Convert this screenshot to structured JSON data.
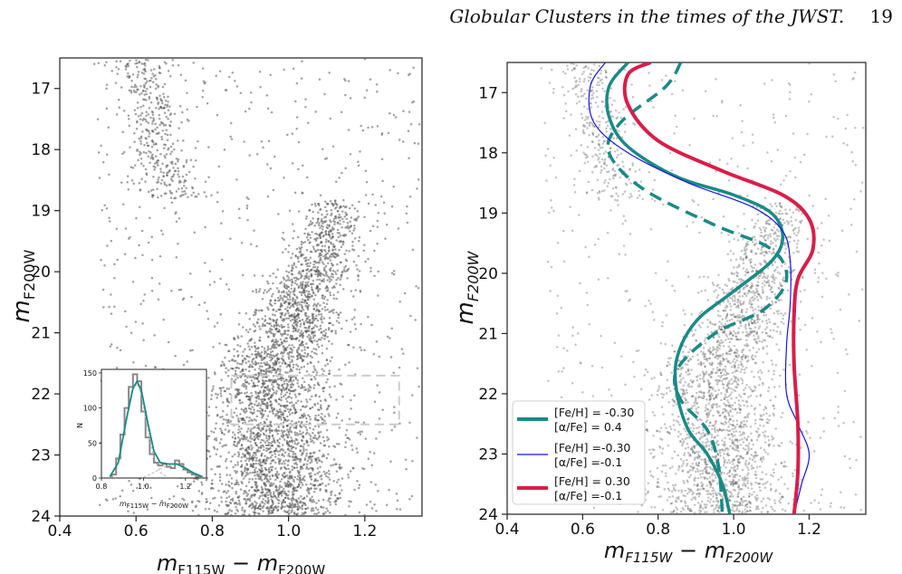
{
  "header": {
    "running_title": "Globular Clusters in the times of the JWST.",
    "page_number": "19"
  },
  "colors": {
    "points": "#555555",
    "teal": "#1a8a86",
    "blue": "#1515dd",
    "red": "#d81e4a",
    "fit_dash": "#bbbbbb",
    "box": "#cccccc"
  },
  "chart_data": [
    {
      "type": "scatter",
      "panel": "left",
      "xlabel": "m_F115W − m_F200W",
      "ylabel": "m_F200W",
      "xlim": [
        0.4,
        1.35
      ],
      "ylim": [
        24,
        16.5
      ],
      "y_inverted": true,
      "x_ticks": [
        "0.4",
        "0.6",
        "0.8",
        "1.0",
        "1.2"
      ],
      "y_ticks": [
        "17",
        "18",
        "19",
        "20",
        "21",
        "22",
        "23",
        "24"
      ],
      "selection_box": {
        "x": [
          0.85,
          1.29
        ],
        "y": [
          21.7,
          22.5
        ]
      },
      "description_of_points": "Color-magnitude diagram: dense main sequence from ~(1.1,18.8) curving down to ~(0.95,23.5); sparse red-giant/AGB clump near color 0.6 at m 17–18.5; scattered field stars",
      "inset": {
        "type": "histogram",
        "xlabel": "m_F115W − m_F200W",
        "ylabel": "N",
        "xlim": [
          0.8,
          1.3
        ],
        "ylim": [
          0,
          155
        ],
        "x_ticks": [
          "0.8",
          "1.0",
          "1.2"
        ],
        "y_ticks": [
          "0",
          "50",
          "100",
          "150"
        ],
        "bins_x": [
          0.86,
          0.88,
          0.9,
          0.92,
          0.94,
          0.96,
          0.98,
          1.0,
          1.02,
          1.04,
          1.06,
          1.08,
          1.1,
          1.12,
          1.14,
          1.16,
          1.18,
          1.2,
          1.22,
          1.24,
          1.26
        ],
        "bins_n": [
          5,
          28,
          62,
          100,
          130,
          148,
          138,
          95,
          58,
          34,
          22,
          18,
          20,
          16,
          14,
          25,
          20,
          12,
          8,
          5,
          2
        ],
        "fit_total": [
          [
            0.84,
            2
          ],
          [
            0.88,
            22
          ],
          [
            0.92,
            85
          ],
          [
            0.95,
            128
          ],
          [
            0.97,
            138
          ],
          [
            0.99,
            125
          ],
          [
            1.02,
            80
          ],
          [
            1.05,
            38
          ],
          [
            1.08,
            22
          ],
          [
            1.12,
            20
          ],
          [
            1.16,
            20
          ],
          [
            1.2,
            14
          ],
          [
            1.24,
            7
          ],
          [
            1.28,
            2
          ]
        ],
        "fit_component_1": [
          [
            0.84,
            2
          ],
          [
            0.88,
            22
          ],
          [
            0.92,
            85
          ],
          [
            0.95,
            126
          ],
          [
            0.97,
            135
          ],
          [
            0.99,
            118
          ],
          [
            1.02,
            70
          ],
          [
            1.05,
            28
          ],
          [
            1.08,
            8
          ],
          [
            1.11,
            2
          ]
        ],
        "fit_component_2": [
          [
            1.0,
            1
          ],
          [
            1.05,
            8
          ],
          [
            1.1,
            16
          ],
          [
            1.15,
            20
          ],
          [
            1.2,
            14
          ],
          [
            1.25,
            5
          ],
          [
            1.29,
            1
          ]
        ]
      }
    },
    {
      "type": "scatter",
      "panel": "right",
      "xlabel": "m_F115W − m_F200W",
      "ylabel": "m_F200W",
      "xlim": [
        0.4,
        1.35
      ],
      "ylim": [
        24,
        16.5
      ],
      "y_inverted": true,
      "x_ticks": [
        "0.4",
        "0.6",
        "0.8",
        "1.0",
        "1.2"
      ],
      "y_ticks": [
        "17",
        "18",
        "19",
        "20",
        "21",
        "22",
        "23",
        "24"
      ],
      "legend": {
        "position": "lower-left",
        "entries": [
          {
            "line1": "[Fe/H] = -0.30",
            "line2": "[α/Fe] = 0.4",
            "color": "#1a8a86",
            "width": 4
          },
          {
            "line1": "[Fe/H] =-0.30",
            "line2": "[α/Fe] =-0.1",
            "color": "#1515dd",
            "width": 1.2
          },
          {
            "line1": "[Fe/H] = 0.30",
            "line2": "[α/Fe] =-0.1",
            "color": "#d81e4a",
            "width": 4
          }
        ]
      },
      "series": [
        {
          "style": "solid",
          "color": "#1a8a86",
          "width": 3.5,
          "points": [
            [
              0.72,
              16.5
            ],
            [
              0.67,
              16.9
            ],
            [
              0.67,
              17.4
            ],
            [
              0.72,
              17.9
            ],
            [
              0.85,
              18.4
            ],
            [
              1.0,
              18.7
            ],
            [
              1.1,
              19.0
            ],
            [
              1.13,
              19.4
            ],
            [
              1.1,
              19.8
            ],
            [
              1.0,
              20.3
            ],
            [
              0.9,
              20.8
            ],
            [
              0.85,
              21.4
            ],
            [
              0.85,
              22.0
            ],
            [
              0.88,
              22.6
            ],
            [
              0.93,
              23.0
            ],
            [
              0.97,
              23.5
            ],
            [
              0.99,
              24.0
            ]
          ]
        },
        {
          "style": "dashed",
          "color": "#1a8a86",
          "width": 3.5,
          "points": [
            [
              0.86,
              16.5
            ],
            [
              0.82,
              16.9
            ],
            [
              0.7,
              17.5
            ],
            [
              0.67,
              18.0
            ],
            [
              0.76,
              18.6
            ],
            [
              0.95,
              19.2
            ],
            [
              1.1,
              19.6
            ],
            [
              1.14,
              20.1
            ],
            [
              1.08,
              20.6
            ],
            [
              0.95,
              21.0
            ],
            [
              0.85,
              21.6
            ],
            [
              0.86,
              22.1
            ],
            [
              0.93,
              22.6
            ],
            [
              0.96,
              23.2
            ],
            [
              0.97,
              24.0
            ]
          ]
        },
        {
          "style": "solid",
          "color": "#1515dd",
          "width": 1.2,
          "points": [
            [
              0.66,
              16.5
            ],
            [
              0.62,
              16.9
            ],
            [
              0.63,
              17.5
            ],
            [
              0.72,
              18.0
            ],
            [
              0.88,
              18.5
            ],
            [
              1.05,
              18.9
            ],
            [
              1.13,
              19.3
            ],
            [
              1.15,
              19.8
            ],
            [
              1.15,
              20.5
            ],
            [
              1.14,
              21.2
            ],
            [
              1.14,
              22.0
            ],
            [
              1.17,
              22.5
            ],
            [
              1.2,
              23.0
            ],
            [
              1.18,
              23.5
            ],
            [
              1.16,
              24.0
            ]
          ]
        },
        {
          "style": "solid",
          "color": "#d81e4a",
          "width": 4,
          "points": [
            [
              0.78,
              16.5
            ],
            [
              0.72,
              16.7
            ],
            [
              0.72,
              17.2
            ],
            [
              0.8,
              17.8
            ],
            [
              0.97,
              18.3
            ],
            [
              1.13,
              18.7
            ],
            [
              1.2,
              19.1
            ],
            [
              1.21,
              19.6
            ],
            [
              1.17,
              20.1
            ],
            [
              1.16,
              20.7
            ],
            [
              1.16,
              21.5
            ],
            [
              1.17,
              22.5
            ],
            [
              1.17,
              23.3
            ],
            [
              1.16,
              24.0
            ]
          ]
        }
      ]
    }
  ]
}
